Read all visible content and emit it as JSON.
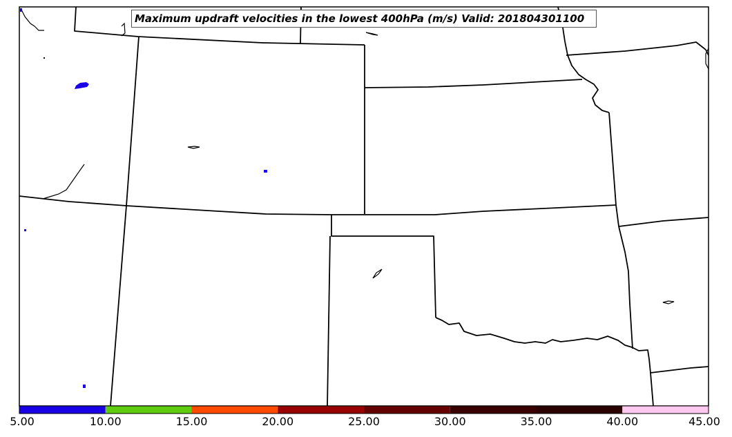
{
  "title": "Maximum updraft velocities in the lowest 400hPa (m/s) Valid: 201804301100",
  "colorbar": {
    "ticks": [
      "5.00",
      "10.00",
      "15.00",
      "20.00",
      "25.00",
      "30.00",
      "35.00",
      "40.00",
      "45.00"
    ],
    "colors": [
      "#1a00e6",
      "#5fcc10",
      "#ff4a00",
      "#990000",
      "#660000",
      "#3a0000",
      "#2a0000",
      "#ffc8f0",
      "#ffe8f8"
    ]
  }
}
